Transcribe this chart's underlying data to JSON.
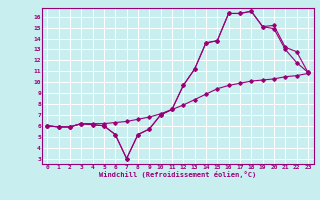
{
  "xlabel": "Windchill (Refroidissement éolien,°C)",
  "bg_color": "#c8eef0",
  "line_color": "#990077",
  "grid_color": "#ffffff",
  "xlim": [
    -0.5,
    23.5
  ],
  "ylim": [
    2.5,
    16.8
  ],
  "xticks": [
    0,
    1,
    2,
    3,
    4,
    5,
    6,
    7,
    8,
    9,
    10,
    11,
    12,
    13,
    14,
    15,
    16,
    17,
    18,
    19,
    20,
    21,
    22,
    23
  ],
  "yticks": [
    3,
    4,
    5,
    6,
    7,
    8,
    9,
    10,
    11,
    12,
    13,
    14,
    15,
    16
  ],
  "line1_x": [
    0,
    1,
    2,
    3,
    4,
    5,
    6,
    7,
    8,
    9,
    10,
    11,
    12,
    13,
    14,
    15,
    16,
    17,
    18,
    19,
    20,
    21,
    22,
    23
  ],
  "line1_y": [
    6.0,
    5.9,
    5.9,
    6.2,
    6.1,
    6.0,
    5.2,
    3.0,
    5.2,
    5.7,
    7.0,
    7.5,
    9.7,
    11.2,
    13.6,
    13.8,
    16.3,
    16.3,
    16.5,
    15.1,
    15.2,
    13.2,
    12.8,
    10.9
  ],
  "line2_x": [
    0,
    1,
    2,
    3,
    4,
    5,
    6,
    7,
    8,
    9,
    10,
    11,
    12,
    13,
    14,
    15,
    16,
    17,
    18,
    19,
    20,
    21,
    22,
    23
  ],
  "line2_y": [
    6.0,
    5.9,
    5.9,
    6.2,
    6.1,
    6.0,
    5.2,
    3.0,
    5.2,
    5.7,
    7.0,
    7.5,
    9.7,
    11.2,
    13.6,
    13.8,
    16.3,
    16.3,
    16.5,
    15.1,
    14.9,
    13.0,
    11.8,
    10.9
  ],
  "line3_x": [
    0,
    1,
    2,
    3,
    4,
    5,
    6,
    7,
    8,
    9,
    10,
    11,
    12,
    13,
    14,
    15,
    16,
    17,
    18,
    19,
    20,
    21,
    22,
    23
  ],
  "line3_y": [
    6.0,
    5.9,
    5.9,
    6.2,
    6.2,
    6.2,
    6.3,
    6.4,
    6.6,
    6.8,
    7.1,
    7.5,
    7.9,
    8.4,
    8.9,
    9.4,
    9.7,
    9.9,
    10.1,
    10.2,
    10.3,
    10.5,
    10.6,
    10.8
  ]
}
